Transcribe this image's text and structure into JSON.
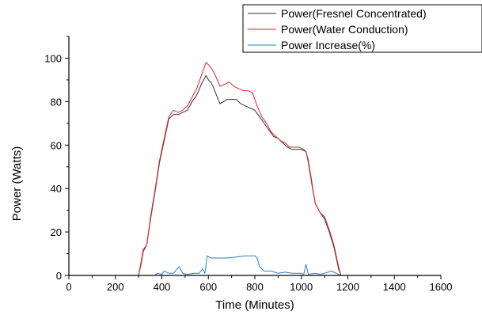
{
  "chart_data": {
    "type": "line",
    "xlabel": "Time (Minutes)",
    "ylabel": "Power (Watts)",
    "xlim": [
      0,
      1600
    ],
    "ylim": [
      0,
      110
    ],
    "x_ticks": [
      0,
      200,
      400,
      600,
      800,
      1000,
      1200,
      1400,
      1600
    ],
    "y_ticks": [
      0,
      20,
      40,
      60,
      80,
      100
    ],
    "grid": false,
    "legend_position": "top-right",
    "series": [
      {
        "name": "Power(Fresnel Concentrated)",
        "color": "#333333",
        "points": [
          [
            0,
            0
          ],
          [
            300,
            0
          ],
          [
            310,
            5
          ],
          [
            320,
            11
          ],
          [
            335,
            14
          ],
          [
            350,
            25
          ],
          [
            370,
            38
          ],
          [
            390,
            52
          ],
          [
            410,
            62
          ],
          [
            430,
            72
          ],
          [
            450,
            74
          ],
          [
            470,
            74
          ],
          [
            490,
            75
          ],
          [
            510,
            76
          ],
          [
            530,
            80
          ],
          [
            550,
            83
          ],
          [
            570,
            88
          ],
          [
            590,
            92
          ],
          [
            600,
            90
          ],
          [
            610,
            89
          ],
          [
            620,
            87
          ],
          [
            635,
            83
          ],
          [
            650,
            79
          ],
          [
            665,
            80
          ],
          [
            680,
            81
          ],
          [
            700,
            81
          ],
          [
            720,
            81
          ],
          [
            740,
            79
          ],
          [
            760,
            78
          ],
          [
            780,
            77
          ],
          [
            800,
            76
          ],
          [
            820,
            73
          ],
          [
            840,
            70
          ],
          [
            860,
            67
          ],
          [
            880,
            64
          ],
          [
            900,
            63
          ],
          [
            920,
            61
          ],
          [
            940,
            59
          ],
          [
            960,
            58
          ],
          [
            980,
            58
          ],
          [
            1000,
            58
          ],
          [
            1020,
            57
          ],
          [
            1030,
            52
          ],
          [
            1045,
            42
          ],
          [
            1060,
            33
          ],
          [
            1080,
            29
          ],
          [
            1100,
            26
          ],
          [
            1120,
            20
          ],
          [
            1140,
            13
          ],
          [
            1160,
            3
          ],
          [
            1170,
            0
          ],
          [
            1600,
            0
          ]
        ]
      },
      {
        "name": "Power(Water Conduction)",
        "color": "#e8202a",
        "points": [
          [
            0,
            0
          ],
          [
            300,
            0
          ],
          [
            310,
            6
          ],
          [
            320,
            12
          ],
          [
            335,
            14
          ],
          [
            350,
            26
          ],
          [
            370,
            39
          ],
          [
            390,
            53
          ],
          [
            410,
            63
          ],
          [
            430,
            73
          ],
          [
            450,
            76
          ],
          [
            470,
            75
          ],
          [
            490,
            76
          ],
          [
            510,
            78
          ],
          [
            530,
            82
          ],
          [
            550,
            86
          ],
          [
            570,
            92
          ],
          [
            590,
            98
          ],
          [
            600,
            97
          ],
          [
            615,
            95
          ],
          [
            630,
            92
          ],
          [
            650,
            87
          ],
          [
            670,
            88
          ],
          [
            690,
            89
          ],
          [
            710,
            87
          ],
          [
            730,
            86
          ],
          [
            750,
            85
          ],
          [
            770,
            85
          ],
          [
            790,
            84
          ],
          [
            810,
            78
          ],
          [
            830,
            73
          ],
          [
            850,
            70
          ],
          [
            870,
            66
          ],
          [
            890,
            64
          ],
          [
            910,
            62
          ],
          [
            930,
            61
          ],
          [
            950,
            59
          ],
          [
            970,
            59
          ],
          [
            990,
            59
          ],
          [
            1010,
            58
          ],
          [
            1020,
            57
          ],
          [
            1030,
            53
          ],
          [
            1045,
            43
          ],
          [
            1060,
            33
          ],
          [
            1080,
            29
          ],
          [
            1100,
            27
          ],
          [
            1120,
            21
          ],
          [
            1140,
            14
          ],
          [
            1160,
            4
          ],
          [
            1170,
            0
          ],
          [
            1600,
            0
          ]
        ]
      },
      {
        "name": "Power Increase(%)",
        "color": "#2a7fc8",
        "points": [
          [
            0,
            0
          ],
          [
            370,
            0
          ],
          [
            380,
            1
          ],
          [
            400,
            0.5
          ],
          [
            410,
            2
          ],
          [
            430,
            1
          ],
          [
            450,
            1
          ],
          [
            465,
            3
          ],
          [
            475,
            4
          ],
          [
            490,
            1
          ],
          [
            510,
            0.5
          ],
          [
            540,
            1
          ],
          [
            560,
            1
          ],
          [
            575,
            3
          ],
          [
            585,
            1
          ],
          [
            595,
            9
          ],
          [
            610,
            8
          ],
          [
            640,
            8
          ],
          [
            680,
            8
          ],
          [
            720,
            8.5
          ],
          [
            760,
            9
          ],
          [
            800,
            9
          ],
          [
            810,
            8
          ],
          [
            820,
            4
          ],
          [
            840,
            2
          ],
          [
            870,
            2
          ],
          [
            900,
            1
          ],
          [
            930,
            1.5
          ],
          [
            960,
            1
          ],
          [
            1000,
            1
          ],
          [
            1010,
            0.5
          ],
          [
            1020,
            5
          ],
          [
            1030,
            0.5
          ],
          [
            1060,
            1
          ],
          [
            1080,
            0.5
          ],
          [
            1100,
            1
          ],
          [
            1130,
            2
          ],
          [
            1150,
            1
          ],
          [
            1170,
            0
          ],
          [
            1600,
            0
          ]
        ]
      }
    ]
  }
}
